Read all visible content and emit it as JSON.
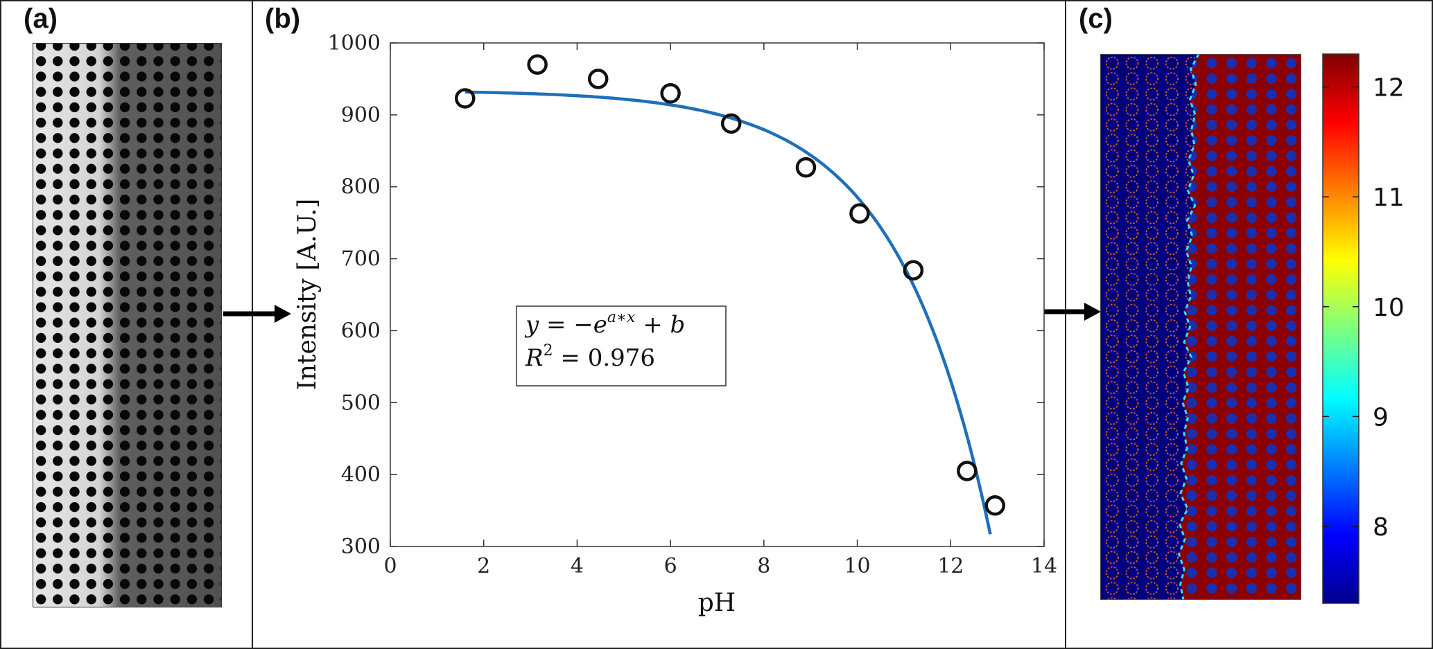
{
  "panels": {
    "a": {
      "label": "(a)"
    },
    "b": {
      "label": "(b)"
    },
    "c": {
      "label": "(c)"
    }
  },
  "chart_data": {
    "type": "scatter",
    "xlabel": "pH",
    "ylabel": "Intensity [A.U.]",
    "xlim": [
      0,
      14
    ],
    "ylim": [
      300,
      1000
    ],
    "x_ticks": [
      0,
      2,
      4,
      6,
      8,
      10,
      12,
      14
    ],
    "y_ticks": [
      300,
      400,
      500,
      600,
      700,
      800,
      900,
      1000
    ],
    "grid": false,
    "points": [
      {
        "x": 1.6,
        "y": 923
      },
      {
        "x": 3.15,
        "y": 970
      },
      {
        "x": 4.45,
        "y": 950
      },
      {
        "x": 6.0,
        "y": 930
      },
      {
        "x": 7.3,
        "y": 888
      },
      {
        "x": 8.9,
        "y": 827
      },
      {
        "x": 10.05,
        "y": 763
      },
      {
        "x": 11.2,
        "y": 684
      },
      {
        "x": 12.35,
        "y": 405
      },
      {
        "x": 12.95,
        "y": 357
      }
    ],
    "fit": {
      "model": "y = -e^(a*x) + b",
      "a": 0.5,
      "b": 934,
      "x_range": [
        1.6,
        12.85
      ],
      "color": "#1f6fba"
    },
    "annotation": {
      "equation": {
        "prefix": "y = −e",
        "superscript": "a∗x",
        "suffix": " + b"
      },
      "r_squared": {
        "prefix": "R",
        "superscript": "2",
        "suffix": " = 0.976"
      }
    },
    "marker_color": "#111111"
  },
  "colorbar": {
    "ticks": [
      "12",
      "11",
      "10",
      "9",
      "8"
    ],
    "tick_values": [
      12,
      11,
      10,
      9,
      8
    ],
    "range": [
      7.3,
      12.3
    ],
    "colormap": "jet"
  },
  "colors": {
    "fit_line": "#1f6fba",
    "map_low": "#00007f",
    "map_high": "#8b0000",
    "arrow": "#000000"
  }
}
